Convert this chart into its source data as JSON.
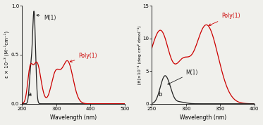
{
  "panel_a": {
    "xlim": [
      200,
      500
    ],
    "ylim": [
      0,
      1.0
    ],
    "yticks": [
      0,
      0.5,
      1.0
    ],
    "xticks": [
      200,
      300,
      400,
      500
    ],
    "xlabel": "Wavelength (nm)",
    "ylabel": "ε × 10⁻³ (M⁻¹cm⁻¹)",
    "label": "a",
    "monomer_color": "#222222",
    "poly_color": "#cc0000",
    "bg_color": "#f0f0ec"
  },
  "panel_b": {
    "xlim": [
      250,
      400
    ],
    "ylim": [
      0,
      15
    ],
    "yticks": [
      0,
      5,
      10,
      15
    ],
    "xticks": [
      250,
      300,
      350,
      400
    ],
    "xlabel": "Wavelength (nm)",
    "ylabel": "[θ]×10⁻⁴ (deg cm² dmol⁻¹)",
    "label": "b",
    "monomer_color": "#222222",
    "poly_color": "#cc0000",
    "bg_color": "#f0f0ec"
  },
  "fig_bg": "#f0f0ec"
}
